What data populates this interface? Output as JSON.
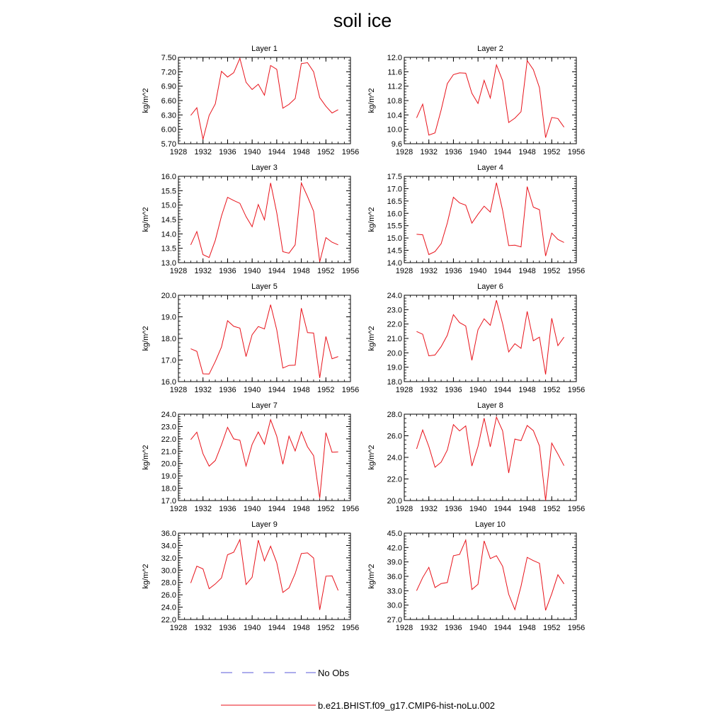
{
  "title": "soil ice",
  "legend": [
    {
      "label": "No Obs",
      "color": "#5a5ad8",
      "dash": true
    },
    {
      "label": "b.e21.BHIST.f09_g17.CMIP6-hist-noLu.002",
      "color": "#e8121a",
      "dash": false
    }
  ],
  "chart_data": [
    {
      "type": "line",
      "title": "Layer 1",
      "ylabel": "kg/m^2",
      "x": [
        1930,
        1931,
        1932,
        1933,
        1934,
        1935,
        1936,
        1937,
        1938,
        1939,
        1940,
        1941,
        1942,
        1943,
        1944,
        1945,
        1946,
        1947,
        1948,
        1949,
        1950,
        1951,
        1952,
        1953,
        1954
      ],
      "y": [
        6.29,
        6.45,
        5.79,
        6.29,
        6.53,
        7.21,
        7.09,
        7.18,
        7.48,
        6.98,
        6.83,
        6.94,
        6.71,
        7.33,
        7.25,
        6.44,
        6.52,
        6.64,
        7.37,
        7.39,
        7.2,
        6.66,
        6.48,
        6.34,
        6.41
      ],
      "ylim": [
        5.7,
        7.5
      ],
      "yticks": [
        "5.70",
        "6.00",
        "6.30",
        "6.60",
        "6.90",
        "7.20",
        "7.50"
      ],
      "xlim": [
        1928,
        1956
      ],
      "xticks": [
        "1928",
        "1932",
        "1936",
        "1940",
        "1944",
        "1948",
        "1952",
        "1956"
      ]
    },
    {
      "type": "line",
      "title": "Layer 2",
      "ylabel": "kg/m^2",
      "x": [
        1930,
        1931,
        1932,
        1933,
        1934,
        1935,
        1936,
        1937,
        1938,
        1939,
        1940,
        1941,
        1942,
        1943,
        1944,
        1945,
        1946,
        1947,
        1948,
        1949,
        1950,
        1951,
        1952,
        1953,
        1954
      ],
      "y": [
        10.32,
        10.7,
        9.84,
        9.9,
        10.54,
        11.27,
        11.52,
        11.57,
        11.56,
        11.0,
        10.72,
        11.36,
        10.87,
        11.79,
        11.35,
        10.19,
        10.31,
        10.49,
        11.91,
        11.66,
        11.16,
        9.77,
        10.33,
        10.3,
        10.06
      ],
      "ylim": [
        9.6,
        12.0
      ],
      "yticks": [
        "9.6",
        "10.0",
        "10.4",
        "10.8",
        "11.2",
        "11.6",
        "12.0"
      ],
      "xlim": [
        1928,
        1956
      ],
      "xticks": [
        "1928",
        "1932",
        "1936",
        "1940",
        "1944",
        "1948",
        "1952",
        "1956"
      ]
    },
    {
      "type": "line",
      "title": "Layer 3",
      "ylabel": "kg/m^2",
      "x": [
        1930,
        1931,
        1932,
        1933,
        1934,
        1935,
        1936,
        1937,
        1938,
        1939,
        1940,
        1941,
        1942,
        1943,
        1944,
        1945,
        1946,
        1947,
        1948,
        1949,
        1950,
        1951,
        1952,
        1953,
        1954
      ],
      "y": [
        13.62,
        14.08,
        13.28,
        13.18,
        13.78,
        14.62,
        15.27,
        15.16,
        15.06,
        14.6,
        14.25,
        15.02,
        14.49,
        15.77,
        14.73,
        13.38,
        13.33,
        13.62,
        15.77,
        15.3,
        14.79,
        13.03,
        13.87,
        13.71,
        13.62
      ],
      "ylim": [
        13.0,
        16.0
      ],
      "yticks": [
        "13.0",
        "13.5",
        "14.0",
        "14.5",
        "15.0",
        "15.5",
        "16.0"
      ],
      "xlim": [
        1928,
        1956
      ],
      "xticks": [
        "1928",
        "1932",
        "1936",
        "1940",
        "1944",
        "1948",
        "1952",
        "1956"
      ]
    },
    {
      "type": "line",
      "title": "Layer 4",
      "ylabel": "kg/m^2",
      "x": [
        1930,
        1931,
        1932,
        1933,
        1934,
        1935,
        1936,
        1937,
        1938,
        1939,
        1940,
        1941,
        1942,
        1943,
        1944,
        1945,
        1946,
        1947,
        1948,
        1949,
        1950,
        1951,
        1952,
        1953,
        1954
      ],
      "y": [
        15.15,
        15.13,
        14.33,
        14.45,
        14.77,
        15.61,
        16.65,
        16.42,
        16.33,
        15.6,
        15.96,
        16.29,
        16.05,
        17.24,
        16.12,
        14.69,
        14.71,
        14.64,
        17.08,
        16.25,
        16.15,
        14.27,
        15.2,
        14.94,
        14.82
      ],
      "ylim": [
        14.0,
        17.5
      ],
      "yticks": [
        "14.0",
        "14.5",
        "15.0",
        "15.5",
        "16.0",
        "16.5",
        "17.0",
        "17.5"
      ],
      "xlim": [
        1928,
        1956
      ],
      "xticks": [
        "1928",
        "1932",
        "1936",
        "1940",
        "1944",
        "1948",
        "1952",
        "1956"
      ]
    },
    {
      "type": "line",
      "title": "Layer 5",
      "ylabel": "kg/m^2",
      "x": [
        1930,
        1931,
        1932,
        1933,
        1934,
        1935,
        1936,
        1937,
        1938,
        1939,
        1940,
        1941,
        1942,
        1943,
        1944,
        1945,
        1946,
        1947,
        1948,
        1949,
        1950,
        1951,
        1952,
        1953,
        1954
      ],
      "y": [
        17.52,
        17.4,
        16.36,
        16.35,
        16.93,
        17.6,
        18.82,
        18.56,
        18.48,
        17.16,
        18.17,
        18.55,
        18.44,
        19.56,
        18.4,
        16.63,
        16.75,
        16.76,
        19.4,
        18.27,
        18.25,
        16.17,
        18.09,
        17.06,
        17.16
      ],
      "ylim": [
        16.0,
        20.0
      ],
      "yticks": [
        "16.0",
        "17.0",
        "18.0",
        "19.0",
        "20.0"
      ],
      "xlim": [
        1928,
        1956
      ],
      "xticks": [
        "1928",
        "1932",
        "1936",
        "1940",
        "1944",
        "1948",
        "1952",
        "1956"
      ]
    },
    {
      "type": "line",
      "title": "Layer 6",
      "ylabel": "kg/m^2",
      "x": [
        1930,
        1931,
        1932,
        1933,
        1934,
        1935,
        1936,
        1937,
        1938,
        1939,
        1940,
        1941,
        1942,
        1943,
        1944,
        1945,
        1946,
        1947,
        1948,
        1949,
        1950,
        1951,
        1952,
        1953,
        1954
      ],
      "y": [
        21.48,
        21.29,
        19.79,
        19.85,
        20.43,
        21.22,
        22.65,
        22.1,
        21.86,
        19.48,
        21.6,
        22.36,
        21.91,
        23.65,
        22.02,
        20.06,
        20.63,
        20.31,
        22.88,
        20.84,
        21.09,
        18.5,
        22.4,
        20.5,
        21.09
      ],
      "ylim": [
        18.0,
        24.0
      ],
      "yticks": [
        "18.0",
        "19.0",
        "20.0",
        "21.0",
        "22.0",
        "23.0",
        "24.0"
      ],
      "xlim": [
        1928,
        1956
      ],
      "xticks": [
        "1928",
        "1932",
        "1936",
        "1940",
        "1944",
        "1948",
        "1952",
        "1956"
      ]
    },
    {
      "type": "line",
      "title": "Layer 7",
      "ylabel": "kg/m^2",
      "x": [
        1930,
        1931,
        1932,
        1933,
        1934,
        1935,
        1936,
        1937,
        1938,
        1939,
        1940,
        1941,
        1942,
        1943,
        1944,
        1945,
        1946,
        1947,
        1948,
        1949,
        1950,
        1951,
        1952,
        1953,
        1954
      ],
      "y": [
        21.94,
        22.54,
        20.8,
        19.79,
        20.25,
        21.52,
        22.93,
        22.0,
        21.89,
        19.8,
        21.55,
        22.56,
        21.57,
        23.55,
        22.21,
        19.95,
        22.22,
        21.02,
        22.58,
        21.36,
        20.64,
        17.19,
        22.5,
        20.92,
        20.94
      ],
      "ylim": [
        17.0,
        24.0
      ],
      "yticks": [
        "17.0",
        "18.0",
        "19.0",
        "20.0",
        "21.0",
        "22.0",
        "23.0",
        "24.0"
      ],
      "xlim": [
        1928,
        1956
      ],
      "xticks": [
        "1928",
        "1932",
        "1936",
        "1940",
        "1944",
        "1948",
        "1952",
        "1956"
      ]
    },
    {
      "type": "line",
      "title": "Layer 8",
      "ylabel": "kg/m^2",
      "x": [
        1930,
        1931,
        1932,
        1933,
        1934,
        1935,
        1936,
        1937,
        1938,
        1939,
        1940,
        1941,
        1942,
        1943,
        1944,
        1945,
        1946,
        1947,
        1948,
        1949,
        1950,
        1951,
        1952,
        1953,
        1954
      ],
      "y": [
        24.79,
        26.54,
        25.01,
        23.09,
        23.56,
        24.68,
        27.03,
        26.45,
        26.91,
        23.2,
        25.01,
        27.63,
        24.98,
        27.73,
        26.46,
        22.56,
        25.7,
        25.55,
        26.95,
        26.48,
        25.06,
        20.0,
        25.32,
        24.3,
        23.23
      ],
      "ylim": [
        20.0,
        28.0
      ],
      "yticks": [
        "20.0",
        "22.0",
        "24.0",
        "26.0",
        "28.0"
      ],
      "xlim": [
        1928,
        1956
      ],
      "xticks": [
        "1928",
        "1932",
        "1936",
        "1940",
        "1944",
        "1948",
        "1952",
        "1956"
      ]
    },
    {
      "type": "line",
      "title": "Layer 9",
      "ylabel": "kg/m^2",
      "x": [
        1930,
        1931,
        1932,
        1933,
        1934,
        1935,
        1936,
        1937,
        1938,
        1939,
        1940,
        1941,
        1942,
        1943,
        1944,
        1945,
        1946,
        1947,
        1948,
        1949,
        1950,
        1951,
        1952,
        1953,
        1954
      ],
      "y": [
        27.92,
        30.64,
        30.21,
        26.99,
        27.76,
        28.72,
        32.5,
        32.9,
        34.94,
        27.67,
        28.85,
        34.86,
        31.5,
        33.88,
        31.2,
        26.38,
        27.13,
        29.45,
        32.69,
        32.8,
        31.97,
        23.56,
        29.02,
        29.07,
        26.72
      ],
      "ylim": [
        22.0,
        36.0
      ],
      "yticks": [
        "22.0",
        "24.0",
        "26.0",
        "28.0",
        "30.0",
        "32.0",
        "34.0",
        "36.0"
      ],
      "xlim": [
        1928,
        1956
      ],
      "xticks": [
        "1928",
        "1932",
        "1936",
        "1940",
        "1944",
        "1948",
        "1952",
        "1956"
      ]
    },
    {
      "type": "line",
      "title": "Layer 10",
      "ylabel": "kg/m^2",
      "x": [
        1930,
        1931,
        1932,
        1933,
        1934,
        1935,
        1936,
        1937,
        1938,
        1939,
        1940,
        1941,
        1942,
        1943,
        1944,
        1945,
        1946,
        1947,
        1948,
        1949,
        1950,
        1951,
        1952,
        1953,
        1954
      ],
      "y": [
        33.0,
        35.73,
        37.87,
        33.67,
        34.5,
        34.7,
        40.29,
        40.56,
        43.56,
        33.26,
        34.35,
        43.38,
        39.71,
        40.29,
        38.1,
        32.25,
        29.07,
        33.94,
        39.95,
        39.28,
        38.71,
        28.9,
        32.36,
        36.33,
        34.42
      ],
      "ylim": [
        27.0,
        45.0
      ],
      "yticks": [
        "27.0",
        "30.0",
        "33.0",
        "36.0",
        "39.0",
        "42.0",
        "45.0"
      ],
      "xlim": [
        1928,
        1956
      ],
      "xticks": [
        "1928",
        "1932",
        "1936",
        "1940",
        "1944",
        "1948",
        "1952",
        "1956"
      ]
    }
  ]
}
